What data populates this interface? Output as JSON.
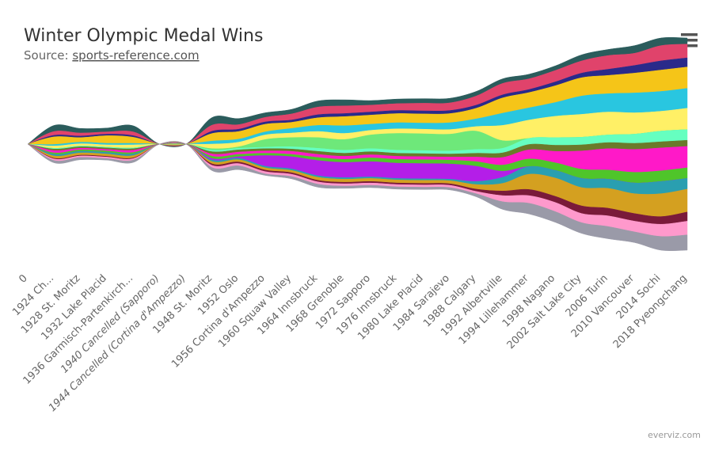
{
  "chart_data": {
    "type": "streamgraph",
    "title": "Winter Olympic Medal Wins",
    "subtitle_prefix": "Source:",
    "subtitle_link": "sports-reference.com",
    "credits": "everviz.com",
    "categories": [
      "0",
      "1924 Ch...",
      "1928 St. Moritz",
      "1932 Lake Placid",
      "1936 Garmisch-Partenkirch...",
      "1940 Cancelled (Sapporo)",
      "1944 Cancelled (Cortina d'Ampezzo)",
      "1948 St. Moritz",
      "1952 Oslo",
      "1956 Cortina d'Ampezzo",
      "1960 Squaw Valley",
      "1964 Innsbruck",
      "1968 Grenoble",
      "1972 Sapporo",
      "1976 Innsbruck",
      "1980 Lake Placid",
      "1984 Sarajevo",
      "1988 Calgary",
      "1992 Albertville",
      "1994 Lillehammer",
      "1998 Nagano",
      "2002 Salt Lake City",
      "2006 Turin",
      "2010 Vancouver",
      "2014 Sochi",
      "2018 Pyeongchang"
    ],
    "series": [
      {
        "color": "#2b5c5c",
        "values": [
          0,
          8,
          6,
          5,
          8,
          0,
          0,
          10,
          8,
          6,
          6,
          8,
          8,
          6,
          6,
          6,
          6,
          6,
          6,
          6,
          6,
          8,
          8,
          10,
          10,
          8
        ]
      },
      {
        "color": "#e0436b",
        "values": [
          0,
          5,
          4,
          3,
          5,
          0,
          0,
          8,
          6,
          6,
          8,
          10,
          10,
          9,
          9,
          10,
          10,
          12,
          15,
          14,
          15,
          16,
          18,
          16,
          20,
          18
        ]
      },
      {
        "color": "#2a2a8a",
        "values": [
          0,
          2,
          2,
          2,
          2,
          0,
          0,
          3,
          3,
          3,
          3,
          4,
          4,
          4,
          4,
          4,
          4,
          4,
          4,
          4,
          5,
          6,
          8,
          10,
          12,
          12
        ]
      },
      {
        "color": "#f5c518",
        "values": [
          0,
          10,
          6,
          10,
          8,
          0,
          0,
          10,
          10,
          10,
          8,
          10,
          12,
          12,
          12,
          12,
          12,
          14,
          20,
          20,
          22,
          24,
          24,
          26,
          28,
          28
        ]
      },
      {
        "color": "#29c6e0",
        "values": [
          0,
          2,
          2,
          2,
          2,
          0,
          0,
          4,
          4,
          4,
          6,
          8,
          10,
          8,
          8,
          8,
          9,
          10,
          16,
          16,
          18,
          24,
          24,
          26,
          26,
          26
        ]
      },
      {
        "color": "#fff066",
        "values": [
          0,
          3,
          3,
          3,
          4,
          0,
          0,
          6,
          6,
          6,
          6,
          8,
          8,
          6,
          6,
          6,
          6,
          6,
          20,
          24,
          28,
          30,
          30,
          28,
          26,
          28
        ]
      },
      {
        "color": "#6ee87a",
        "values": [
          0,
          0,
          0,
          0,
          0,
          0,
          0,
          2,
          2,
          10,
          12,
          14,
          14,
          18,
          22,
          22,
          22,
          24,
          10,
          0,
          0,
          0,
          0,
          0,
          0,
          0
        ]
      },
      {
        "color": "#66ffc0",
        "values": [
          0,
          1,
          1,
          1,
          1,
          0,
          0,
          2,
          2,
          2,
          3,
          4,
          4,
          4,
          4,
          4,
          4,
          5,
          6,
          8,
          10,
          10,
          10,
          12,
          14,
          14
        ]
      },
      {
        "color": "#6b7a2a",
        "values": [
          0,
          2,
          2,
          2,
          2,
          0,
          0,
          3,
          3,
          3,
          3,
          4,
          4,
          4,
          4,
          4,
          4,
          5,
          6,
          7,
          8,
          8,
          8,
          8,
          8,
          8
        ]
      },
      {
        "color": "#ff19c8",
        "values": [
          0,
          3,
          2,
          2,
          3,
          0,
          0,
          3,
          3,
          3,
          4,
          4,
          4,
          4,
          4,
          4,
          4,
          6,
          10,
          12,
          15,
          24,
          28,
          30,
          30,
          28
        ]
      },
      {
        "color": "#4fc52a",
        "values": [
          0,
          2,
          2,
          2,
          2,
          0,
          0,
          3,
          3,
          3,
          3,
          4,
          4,
          5,
          5,
          5,
          5,
          6,
          8,
          10,
          10,
          12,
          12,
          14,
          14,
          14
        ]
      },
      {
        "color": "#b41ee8",
        "values": [
          0,
          0,
          0,
          0,
          0,
          0,
          0,
          2,
          2,
          14,
          16,
          20,
          20,
          20,
          20,
          20,
          20,
          20,
          8,
          0,
          0,
          0,
          0,
          0,
          0,
          0
        ]
      },
      {
        "color": "#2a9fb0",
        "values": [
          0,
          2,
          2,
          2,
          2,
          0,
          0,
          2,
          2,
          2,
          2,
          2,
          2,
          2,
          2,
          2,
          2,
          4,
          8,
          10,
          10,
          12,
          12,
          14,
          16,
          14
        ]
      },
      {
        "color": "#d4a020",
        "values": [
          0,
          3,
          3,
          3,
          3,
          0,
          0,
          3,
          3,
          3,
          3,
          4,
          4,
          4,
          4,
          4,
          4,
          6,
          10,
          20,
          24,
          24,
          26,
          26,
          30,
          30
        ]
      },
      {
        "color": "#7a1a3a",
        "values": [
          0,
          1,
          1,
          1,
          1,
          0,
          0,
          2,
          2,
          2,
          2,
          2,
          2,
          2,
          2,
          2,
          2,
          3,
          6,
          8,
          8,
          10,
          10,
          10,
          10,
          12
        ]
      },
      {
        "color": "#ff99cc",
        "values": [
          0,
          2,
          2,
          2,
          2,
          0,
          0,
          3,
          3,
          3,
          3,
          3,
          3,
          3,
          3,
          3,
          3,
          3,
          8,
          10,
          12,
          12,
          14,
          14,
          16,
          18
        ]
      },
      {
        "color": "#9a9aa8",
        "values": [
          0,
          3,
          3,
          2,
          3,
          0,
          0,
          4,
          5,
          2,
          3,
          4,
          3,
          3,
          3,
          3,
          3,
          4,
          10,
          14,
          14,
          14,
          16,
          14,
          18,
          20
        ]
      }
    ]
  }
}
